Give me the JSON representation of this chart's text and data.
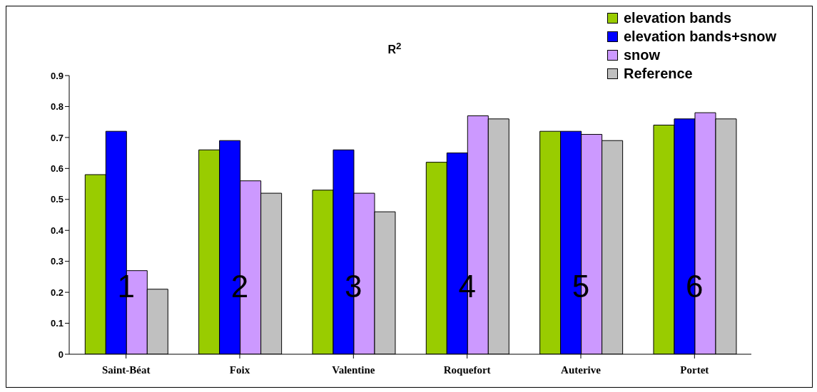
{
  "chart_data": {
    "type": "bar",
    "title": "R$^{2}$",
    "categories": [
      "Saint-Béat",
      "Foix",
      "Valentine",
      "Roquefort",
      "Auterive",
      "Portet"
    ],
    "series": [
      {
        "name": "elevation bands",
        "color": "#99cc00",
        "values": [
          0.58,
          0.66,
          0.53,
          0.62,
          0.72,
          0.74
        ]
      },
      {
        "name": "elevation bands+snow",
        "color": "#0000ff",
        "values": [
          0.72,
          0.69,
          0.66,
          0.65,
          0.72,
          0.76
        ]
      },
      {
        "name": "snow",
        "color": "#cc99ff",
        "values": [
          0.27,
          0.56,
          0.52,
          0.77,
          0.71,
          0.78
        ]
      },
      {
        "name": "Reference",
        "color": "#c0c0c0",
        "values": [
          0.21,
          0.52,
          0.46,
          0.76,
          0.69,
          0.76
        ]
      }
    ],
    "ylim": [
      0,
      0.9
    ],
    "yticks": [
      0,
      0.1,
      0.2,
      0.3,
      0.4,
      0.5,
      0.6,
      0.7,
      0.8,
      0.9
    ],
    "grid": false,
    "legend": "top right",
    "annotations": [
      {
        "text": "1",
        "x": "Saint-Béat",
        "y": 0.22
      },
      {
        "text": "2",
        "x": "Foix",
        "y": 0.22
      },
      {
        "text": "3",
        "x": "Valentine",
        "y": 0.22
      },
      {
        "text": "4",
        "x": "Roquefort",
        "y": 0.22
      },
      {
        "text": "5",
        "x": "Auterive",
        "y": 0.22
      },
      {
        "text": "6",
        "x": "Portet",
        "y": 0.22
      }
    ]
  }
}
